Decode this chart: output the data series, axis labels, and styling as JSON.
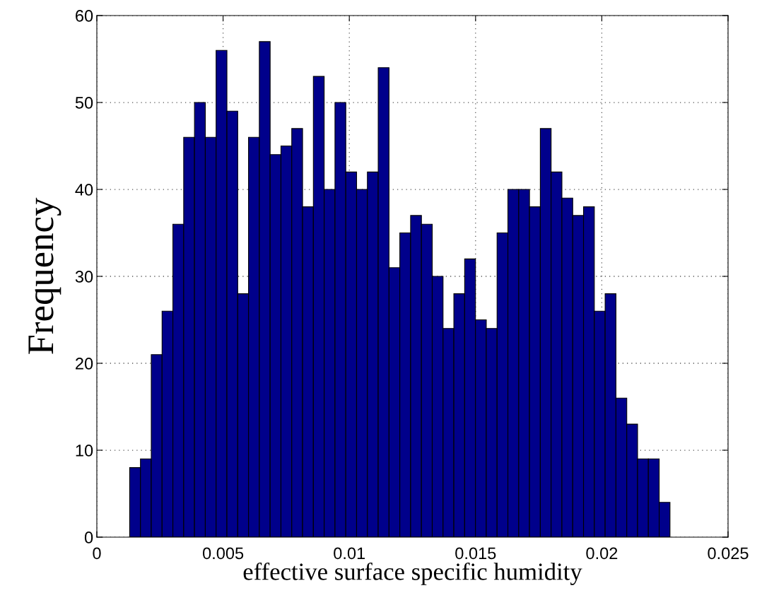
{
  "chart_data": {
    "type": "histogram",
    "xlabel": "effective surface specific humidity",
    "ylabel": "Frequency",
    "bins": [
      0.0013,
      0.001728,
      0.002156,
      0.002584,
      0.003012,
      0.00344,
      0.003868,
      0.004296,
      0.004724,
      0.005152,
      0.00558,
      0.006008,
      0.006436,
      0.006864,
      0.007292,
      0.00772,
      0.008148,
      0.008576,
      0.009004,
      0.009432,
      0.00986,
      0.010288,
      0.010716,
      0.011144,
      0.011572,
      0.012,
      0.012428,
      0.012856,
      0.013284,
      0.013712,
      0.01414,
      0.014568,
      0.014996,
      0.015424,
      0.015852,
      0.01628,
      0.016708,
      0.017136,
      0.017564,
      0.017992,
      0.01842,
      0.018848,
      0.019276,
      0.019704,
      0.020132,
      0.02056,
      0.020988,
      0.021416,
      0.021844,
      0.022272,
      0.0227
    ],
    "values": [
      8,
      9,
      21,
      26,
      36,
      46,
      50,
      46,
      56,
      49,
      28,
      46,
      57,
      44,
      45,
      47,
      38,
      53,
      40,
      50,
      42,
      40,
      42,
      54,
      31,
      35,
      37,
      36,
      30,
      24,
      28,
      32,
      25,
      24,
      35,
      40,
      40,
      38,
      47,
      42,
      39,
      37,
      38,
      26,
      28,
      16,
      13,
      9,
      9,
      4
    ],
    "color": "#00008b",
    "xlim": [
      0,
      0.025
    ],
    "xticks": [
      0,
      0.005,
      0.01,
      0.015,
      0.02,
      0.025
    ],
    "ylim": [
      0,
      60
    ],
    "yticks": [
      0,
      10,
      20,
      30,
      40,
      50,
      60
    ],
    "grid": true
  }
}
